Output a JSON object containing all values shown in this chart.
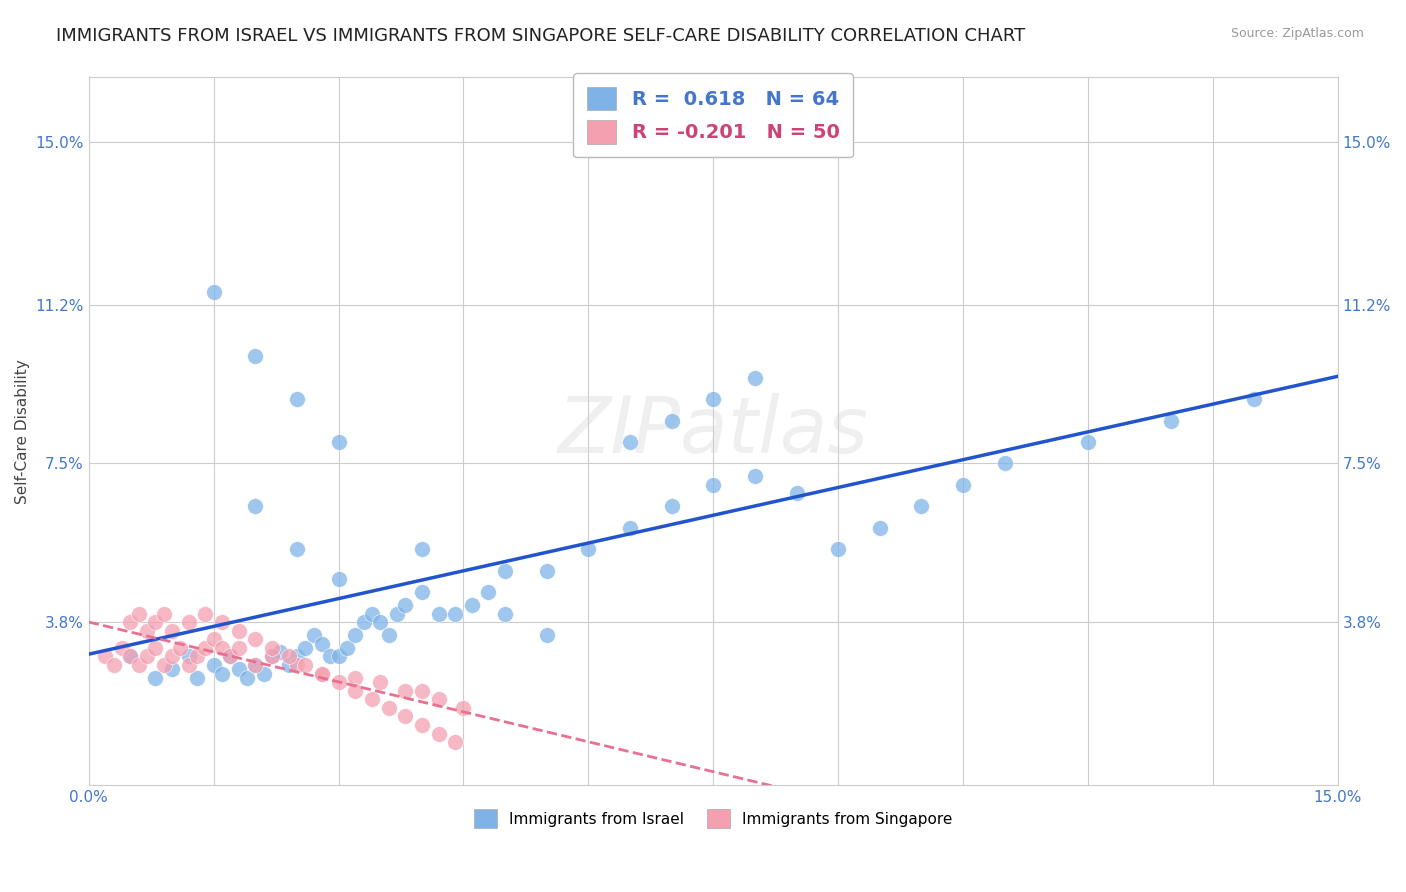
{
  "title": "IMMIGRANTS FROM ISRAEL VS IMMIGRANTS FROM SINGAPORE SELF-CARE DISABILITY CORRELATION CHART",
  "source": "Source: ZipAtlas.com",
  "ylabel": "Self-Care Disability",
  "xlim": [
    0.0,
    0.15
  ],
  "ylim": [
    0.0,
    0.165
  ],
  "r_israel": 0.618,
  "n_israel": 64,
  "r_singapore": -0.201,
  "n_singapore": 50,
  "israel_color": "#7fb3e8",
  "singapore_color": "#f4a0b0",
  "trendline_israel_color": "#2255cc",
  "trendline_singapore_color": "#e87090",
  "background_color": "#ffffff",
  "title_fontsize": 13,
  "axis_label_fontsize": 11,
  "tick_fontsize": 11,
  "israel_scatter_x": [
    0.005,
    0.008,
    0.01,
    0.012,
    0.013,
    0.015,
    0.016,
    0.017,
    0.018,
    0.019,
    0.02,
    0.021,
    0.022,
    0.023,
    0.024,
    0.025,
    0.026,
    0.027,
    0.028,
    0.029,
    0.03,
    0.031,
    0.032,
    0.033,
    0.034,
    0.035,
    0.036,
    0.037,
    0.038,
    0.04,
    0.042,
    0.044,
    0.046,
    0.048,
    0.05,
    0.055,
    0.06,
    0.065,
    0.07,
    0.075,
    0.08,
    0.085,
    0.09,
    0.095,
    0.1,
    0.105,
    0.11,
    0.12,
    0.13,
    0.14,
    0.065,
    0.07,
    0.075,
    0.08,
    0.02,
    0.025,
    0.03,
    0.04,
    0.05,
    0.055,
    0.015,
    0.02,
    0.025,
    0.03
  ],
  "israel_scatter_y": [
    0.03,
    0.025,
    0.027,
    0.03,
    0.025,
    0.028,
    0.026,
    0.03,
    0.027,
    0.025,
    0.028,
    0.026,
    0.03,
    0.031,
    0.028,
    0.03,
    0.032,
    0.035,
    0.033,
    0.03,
    0.03,
    0.032,
    0.035,
    0.038,
    0.04,
    0.038,
    0.035,
    0.04,
    0.042,
    0.045,
    0.04,
    0.04,
    0.042,
    0.045,
    0.05,
    0.05,
    0.055,
    0.06,
    0.065,
    0.07,
    0.072,
    0.068,
    0.055,
    0.06,
    0.065,
    0.07,
    0.075,
    0.08,
    0.085,
    0.09,
    0.08,
    0.085,
    0.09,
    0.095,
    0.065,
    0.055,
    0.048,
    0.055,
    0.04,
    0.035,
    0.115,
    0.1,
    0.09,
    0.08
  ],
  "singapore_scatter_x": [
    0.002,
    0.003,
    0.004,
    0.005,
    0.006,
    0.007,
    0.008,
    0.009,
    0.01,
    0.011,
    0.012,
    0.013,
    0.014,
    0.015,
    0.016,
    0.017,
    0.018,
    0.02,
    0.022,
    0.025,
    0.028,
    0.032,
    0.035,
    0.038,
    0.04,
    0.042,
    0.045,
    0.005,
    0.006,
    0.007,
    0.008,
    0.009,
    0.01,
    0.012,
    0.014,
    0.016,
    0.018,
    0.02,
    0.022,
    0.024,
    0.026,
    0.028,
    0.03,
    0.032,
    0.034,
    0.036,
    0.038,
    0.04,
    0.042,
    0.044
  ],
  "singapore_scatter_y": [
    0.03,
    0.028,
    0.032,
    0.03,
    0.028,
    0.03,
    0.032,
    0.028,
    0.03,
    0.032,
    0.028,
    0.03,
    0.032,
    0.034,
    0.032,
    0.03,
    0.032,
    0.028,
    0.03,
    0.028,
    0.026,
    0.025,
    0.024,
    0.022,
    0.022,
    0.02,
    0.018,
    0.038,
    0.04,
    0.036,
    0.038,
    0.04,
    0.036,
    0.038,
    0.04,
    0.038,
    0.036,
    0.034,
    0.032,
    0.03,
    0.028,
    0.026,
    0.024,
    0.022,
    0.02,
    0.018,
    0.016,
    0.014,
    0.012,
    0.01
  ]
}
